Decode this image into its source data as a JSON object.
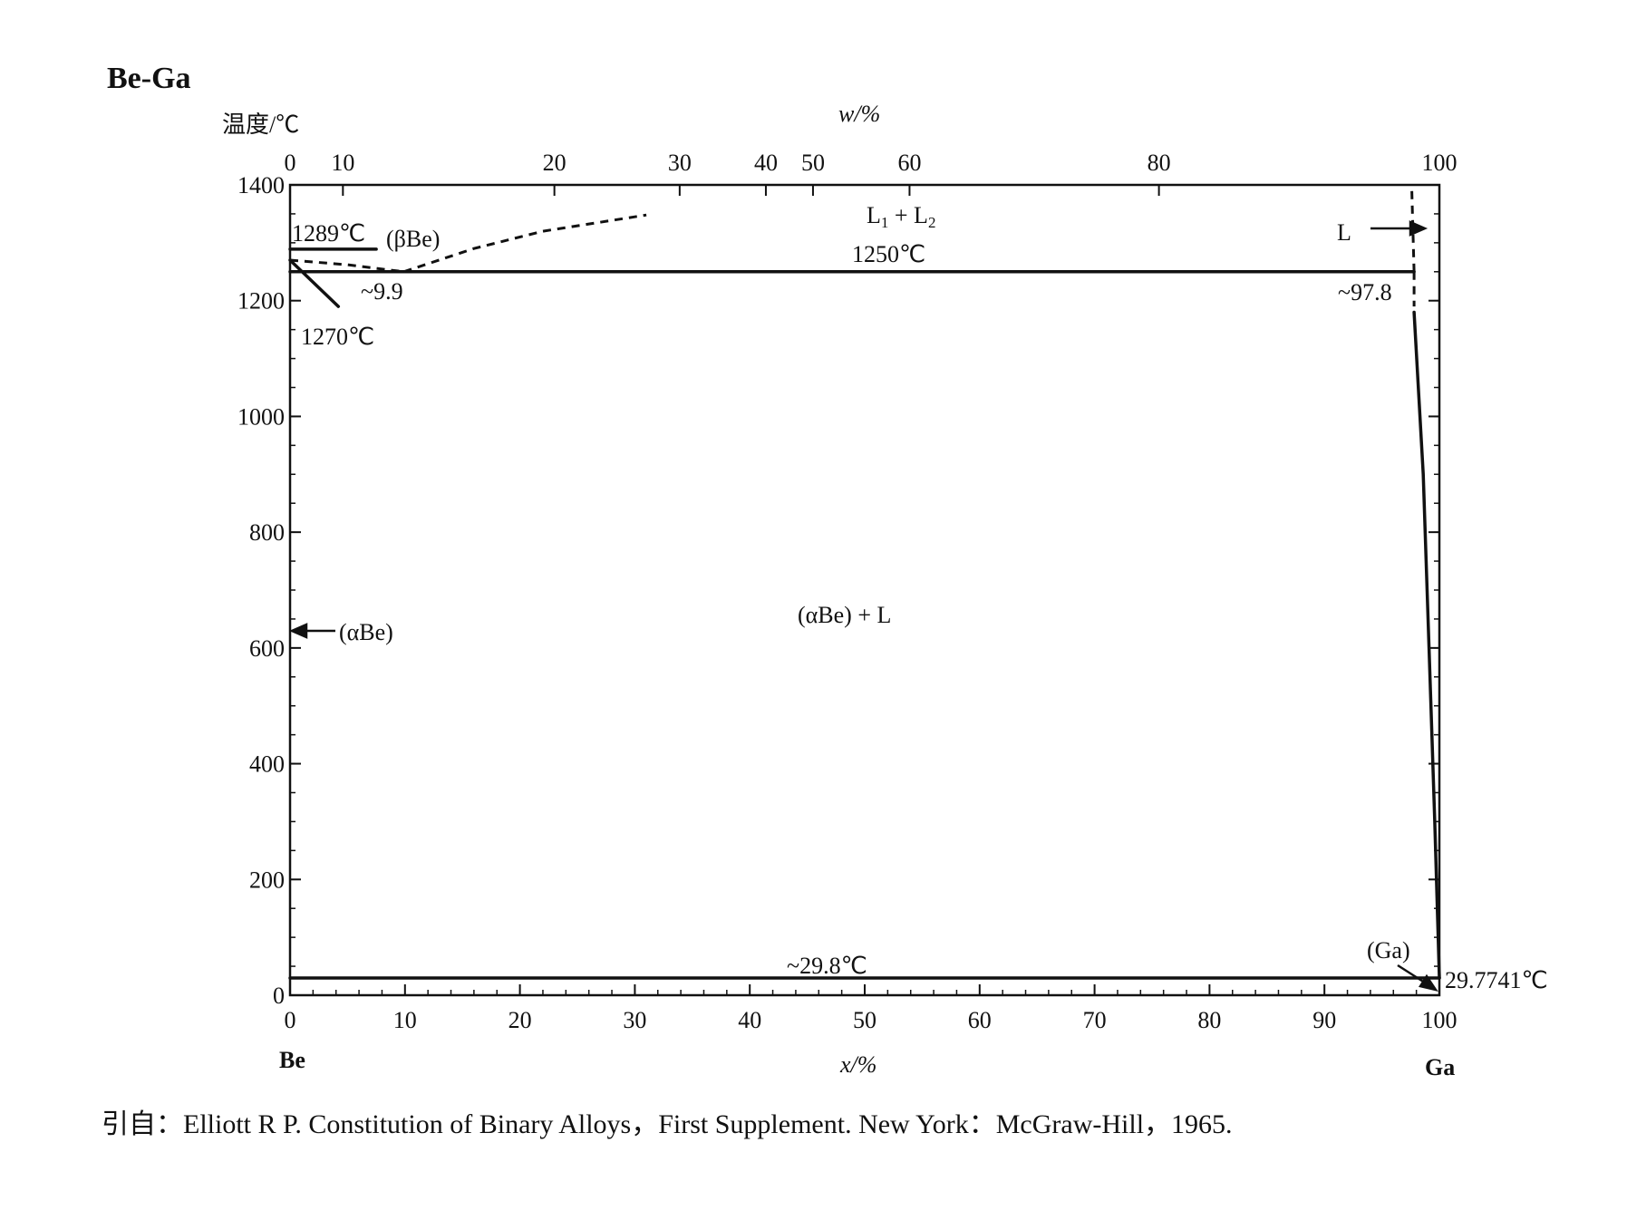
{
  "page": {
    "title": "Be-Ga",
    "citation": "引自：Elliott R P. Constitution of Binary Alloys，First Supplement. New York：McGraw-Hill，1965."
  },
  "chart_data": {
    "type": "line",
    "title": "Be-Ga",
    "ylabel": "温度/℃",
    "xlabel": "x/%",
    "x2label": "w/%",
    "xlim": [
      0,
      100
    ],
    "ylim": [
      0,
      1400
    ],
    "yticks": [
      0,
      200,
      400,
      600,
      800,
      1000,
      1200,
      1400
    ],
    "xticks": [
      0,
      10,
      20,
      30,
      40,
      50,
      60,
      70,
      80,
      90,
      100
    ],
    "x2ticks": [
      {
        "label": "0",
        "x": 0
      },
      {
        "label": "10",
        "x": 4.6
      },
      {
        "label": "20",
        "x": 23.0
      },
      {
        "label": "30",
        "x": 33.9
      },
      {
        "label": "40",
        "x": 41.4
      },
      {
        "label": "50",
        "x": 45.5
      },
      {
        "label": "60",
        "x": 53.9
      },
      {
        "label": "80",
        "x": 75.6
      },
      {
        "label": "100",
        "x": 100
      }
    ],
    "element_left": "Be",
    "element_right": "Ga",
    "series": [
      {
        "style": "solid",
        "points": [
          [
            0,
            1250
          ],
          [
            97.8,
            1250
          ]
        ]
      },
      {
        "style": "solid",
        "points": [
          [
            0,
            1270
          ],
          [
            4.2,
            1190
          ]
        ]
      },
      {
        "style": "solid",
        "points": [
          [
            0,
            1289
          ],
          [
            7.5,
            1289
          ]
        ]
      },
      {
        "style": "dashed",
        "points": [
          [
            0,
            1270
          ],
          [
            5,
            1262
          ],
          [
            9.9,
            1250
          ]
        ]
      },
      {
        "style": "dashed",
        "points": [
          [
            9.9,
            1250
          ],
          [
            16,
            1290
          ],
          [
            22,
            1320
          ],
          [
            31,
            1348
          ]
        ]
      },
      {
        "style": "solid",
        "points": [
          [
            0,
            29.8
          ],
          [
            100,
            29.8
          ]
        ]
      },
      {
        "style": "solid",
        "points": [
          [
            97.8,
            1180
          ],
          [
            98.6,
            900
          ],
          [
            99.1,
            600
          ],
          [
            99.6,
            300
          ],
          [
            100,
            29.8
          ]
        ]
      },
      {
        "style": "dashed",
        "points": [
          [
            97.8,
            1250
          ],
          [
            97.8,
            1190
          ]
        ]
      },
      {
        "style": "dashed",
        "points": [
          [
            97.8,
            1250
          ],
          [
            97.6,
            1390
          ]
        ]
      }
    ],
    "annotations": {
      "t1289": "1289℃",
      "t1270": "1270℃",
      "betaBe": "(βBe)",
      "l1l2_a": "L",
      "l1l2_sub1": "1",
      "l1l2_plus": " + L",
      "l1l2_sub2": "2",
      "t1250": "1250℃",
      "c99": "~9.9",
      "c978": "~97.8",
      "L": "L",
      "alphaBe": "(αBe)",
      "alphaBeL": "(αBe) + L",
      "t298": "~29.8℃",
      "Ga": "(Ga)",
      "t297741": "29.7741℃"
    }
  }
}
